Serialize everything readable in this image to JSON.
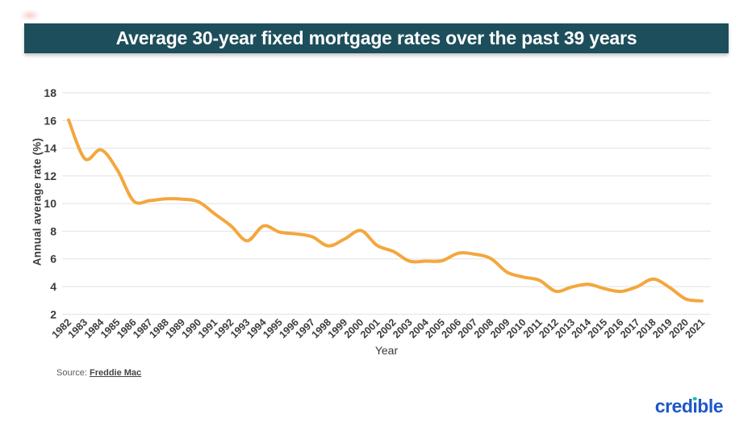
{
  "title_banner": {
    "text": "Average 30-year fixed mortgage rates over the past 39 years",
    "background_color": "#1d4e5b",
    "text_color": "#ffffff"
  },
  "chart_data": {
    "type": "line",
    "title": "Average 30-year fixed mortgage rates over the past 39 years",
    "xlabel": "Year",
    "ylabel": "Annual average rate (%)",
    "x": [
      1982,
      1983,
      1984,
      1985,
      1986,
      1987,
      1988,
      1989,
      1990,
      1991,
      1992,
      1993,
      1994,
      1995,
      1996,
      1997,
      1998,
      1999,
      2000,
      2001,
      2002,
      2003,
      2004,
      2005,
      2006,
      2007,
      2008,
      2009,
      2010,
      2011,
      2012,
      2013,
      2014,
      2015,
      2016,
      2017,
      2018,
      2019,
      2020,
      2021
    ],
    "series": [
      {
        "name": "Average 30-year fixed mortgage rate (%)",
        "color": "#f3a73d",
        "values": [
          16.04,
          13.24,
          13.88,
          12.43,
          10.19,
          10.21,
          10.34,
          10.32,
          10.13,
          9.25,
          8.39,
          7.31,
          8.38,
          7.93,
          7.81,
          7.6,
          6.94,
          7.44,
          8.05,
          6.97,
          6.54,
          5.83,
          5.84,
          5.87,
          6.41,
          6.34,
          6.03,
          5.04,
          4.69,
          4.45,
          3.66,
          3.98,
          4.17,
          3.85,
          3.65,
          3.99,
          4.54,
          3.94,
          3.1,
          2.96
        ]
      }
    ],
    "ylim": [
      2,
      18
    ],
    "y_ticks": [
      18,
      16,
      14,
      12,
      10,
      8,
      6,
      4,
      2
    ],
    "grid": "horizontal-only",
    "gridline_color": "#e2e2e2",
    "tick_label_color": "#3c3c3c",
    "legend": "none",
    "x_tick_rotation_deg": -45
  },
  "footer": {
    "source_prefix": "Source:",
    "source_link": "Freddie Mac"
  },
  "logo": {
    "text": "credible",
    "pre": "cred",
    "dotless_i": "ı",
    "post": "ble",
    "color": "#1e57c8",
    "dot_color": "#1cbfa4"
  }
}
